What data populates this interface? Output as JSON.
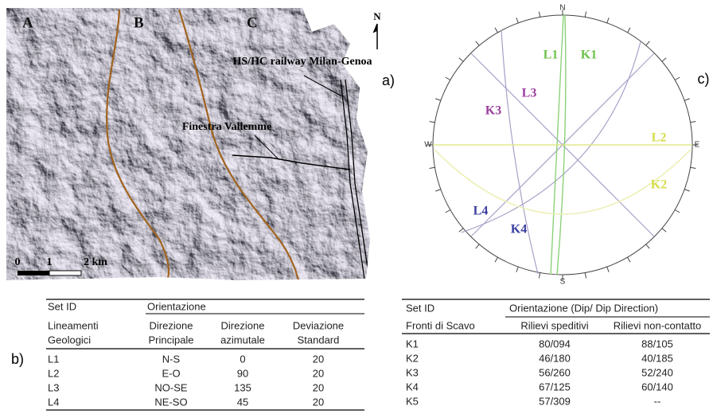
{
  "map": {
    "panel_label": "a)",
    "zones": [
      "A",
      "B",
      "C"
    ],
    "north": "N",
    "railway": "HS/HC railway Milan-Genoa",
    "tunnel": "Finestra Vallemme",
    "scale": [
      "0",
      "1",
      "2 km"
    ]
  },
  "stereonet": {
    "panel_label": "c)",
    "north": "N",
    "south": "S",
    "west": "W",
    "east": "E",
    "sets": [
      {
        "label": "L1",
        "color": "#6cc24a"
      },
      {
        "label": "K1",
        "color": "#6cc24a"
      },
      {
        "label": "L3",
        "color": "#9b3fa0"
      },
      {
        "label": "K3",
        "color": "#9b3fa0"
      },
      {
        "label": "L2",
        "color": "#d4dc4a"
      },
      {
        "label": "K2",
        "color": "#d4dc4a"
      },
      {
        "label": "L4",
        "color": "#3b3fa0"
      },
      {
        "label": "K4",
        "color": "#3b3fa0"
      }
    ]
  },
  "table_b": {
    "panel_label": "b)",
    "header": [
      "Set ID",
      "Orientazione"
    ],
    "subheader": [
      [
        "Lineamenti",
        "Geologici"
      ],
      [
        "Direzione",
        "Principale"
      ],
      [
        "Direzione",
        "azimutale"
      ],
      [
        "Deviazione",
        "Standard"
      ]
    ],
    "rows": [
      [
        "L1",
        "N-S",
        "0",
        "20"
      ],
      [
        "L2",
        "E-O",
        "90",
        "20"
      ],
      [
        "L3",
        "NO-SE",
        "135",
        "20"
      ],
      [
        "L4",
        "NE-SO",
        "45",
        "20"
      ]
    ]
  },
  "table_c": {
    "header": [
      "Set ID",
      "Orientazione (Dip/ Dip Direction)"
    ],
    "subheader": [
      "Fronti di Scavo",
      "Rilievi speditivi",
      "Rilievi non-contatto"
    ],
    "rows": [
      [
        "K1",
        "80/094",
        "88/105"
      ],
      [
        "K2",
        "46/180",
        "40/185"
      ],
      [
        "K3",
        "56/260",
        "52/240"
      ],
      [
        "K4",
        "67/125",
        "60/140"
      ],
      [
        "K5",
        "57/309",
        "--"
      ]
    ]
  }
}
